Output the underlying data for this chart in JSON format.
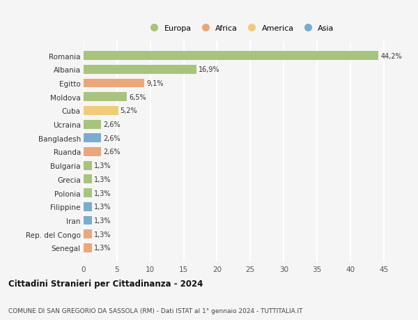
{
  "countries": [
    "Romania",
    "Albania",
    "Egitto",
    "Moldova",
    "Cuba",
    "Ucraina",
    "Bangladesh",
    "Ruanda",
    "Bulgaria",
    "Grecia",
    "Polonia",
    "Filippine",
    "Iran",
    "Rep. del Congo",
    "Senegal"
  ],
  "values": [
    44.2,
    16.9,
    9.1,
    6.5,
    5.2,
    2.6,
    2.6,
    2.6,
    1.3,
    1.3,
    1.3,
    1.3,
    1.3,
    1.3,
    1.3
  ],
  "labels": [
    "44,2%",
    "16,9%",
    "9,1%",
    "6,5%",
    "5,2%",
    "2,6%",
    "2,6%",
    "2,6%",
    "1,3%",
    "1,3%",
    "1,3%",
    "1,3%",
    "1,3%",
    "1,3%",
    "1,3%"
  ],
  "continents": [
    "Europa",
    "Europa",
    "Africa",
    "Europa",
    "America",
    "Europa",
    "Asia",
    "Africa",
    "Europa",
    "Europa",
    "Europa",
    "Asia",
    "Asia",
    "Africa",
    "Africa"
  ],
  "continent_colors": {
    "Europa": "#a8c47c",
    "Africa": "#e8a87c",
    "America": "#f0cc7a",
    "Asia": "#7aaccf"
  },
  "legend_order": [
    "Europa",
    "Africa",
    "America",
    "Asia"
  ],
  "title": "Cittadini Stranieri per Cittadinanza - 2024",
  "subtitle": "COMUNE DI SAN GREGORIO DA SASSOLA (RM) - Dati ISTAT al 1° gennaio 2024 - TUTTITALIA.IT",
  "xlim": [
    0,
    47
  ],
  "xticks": [
    0,
    5,
    10,
    15,
    20,
    25,
    30,
    35,
    40,
    45
  ],
  "bg_color": "#f5f5f5",
  "grid_color": "#ffffff",
  "bar_height": 0.65
}
